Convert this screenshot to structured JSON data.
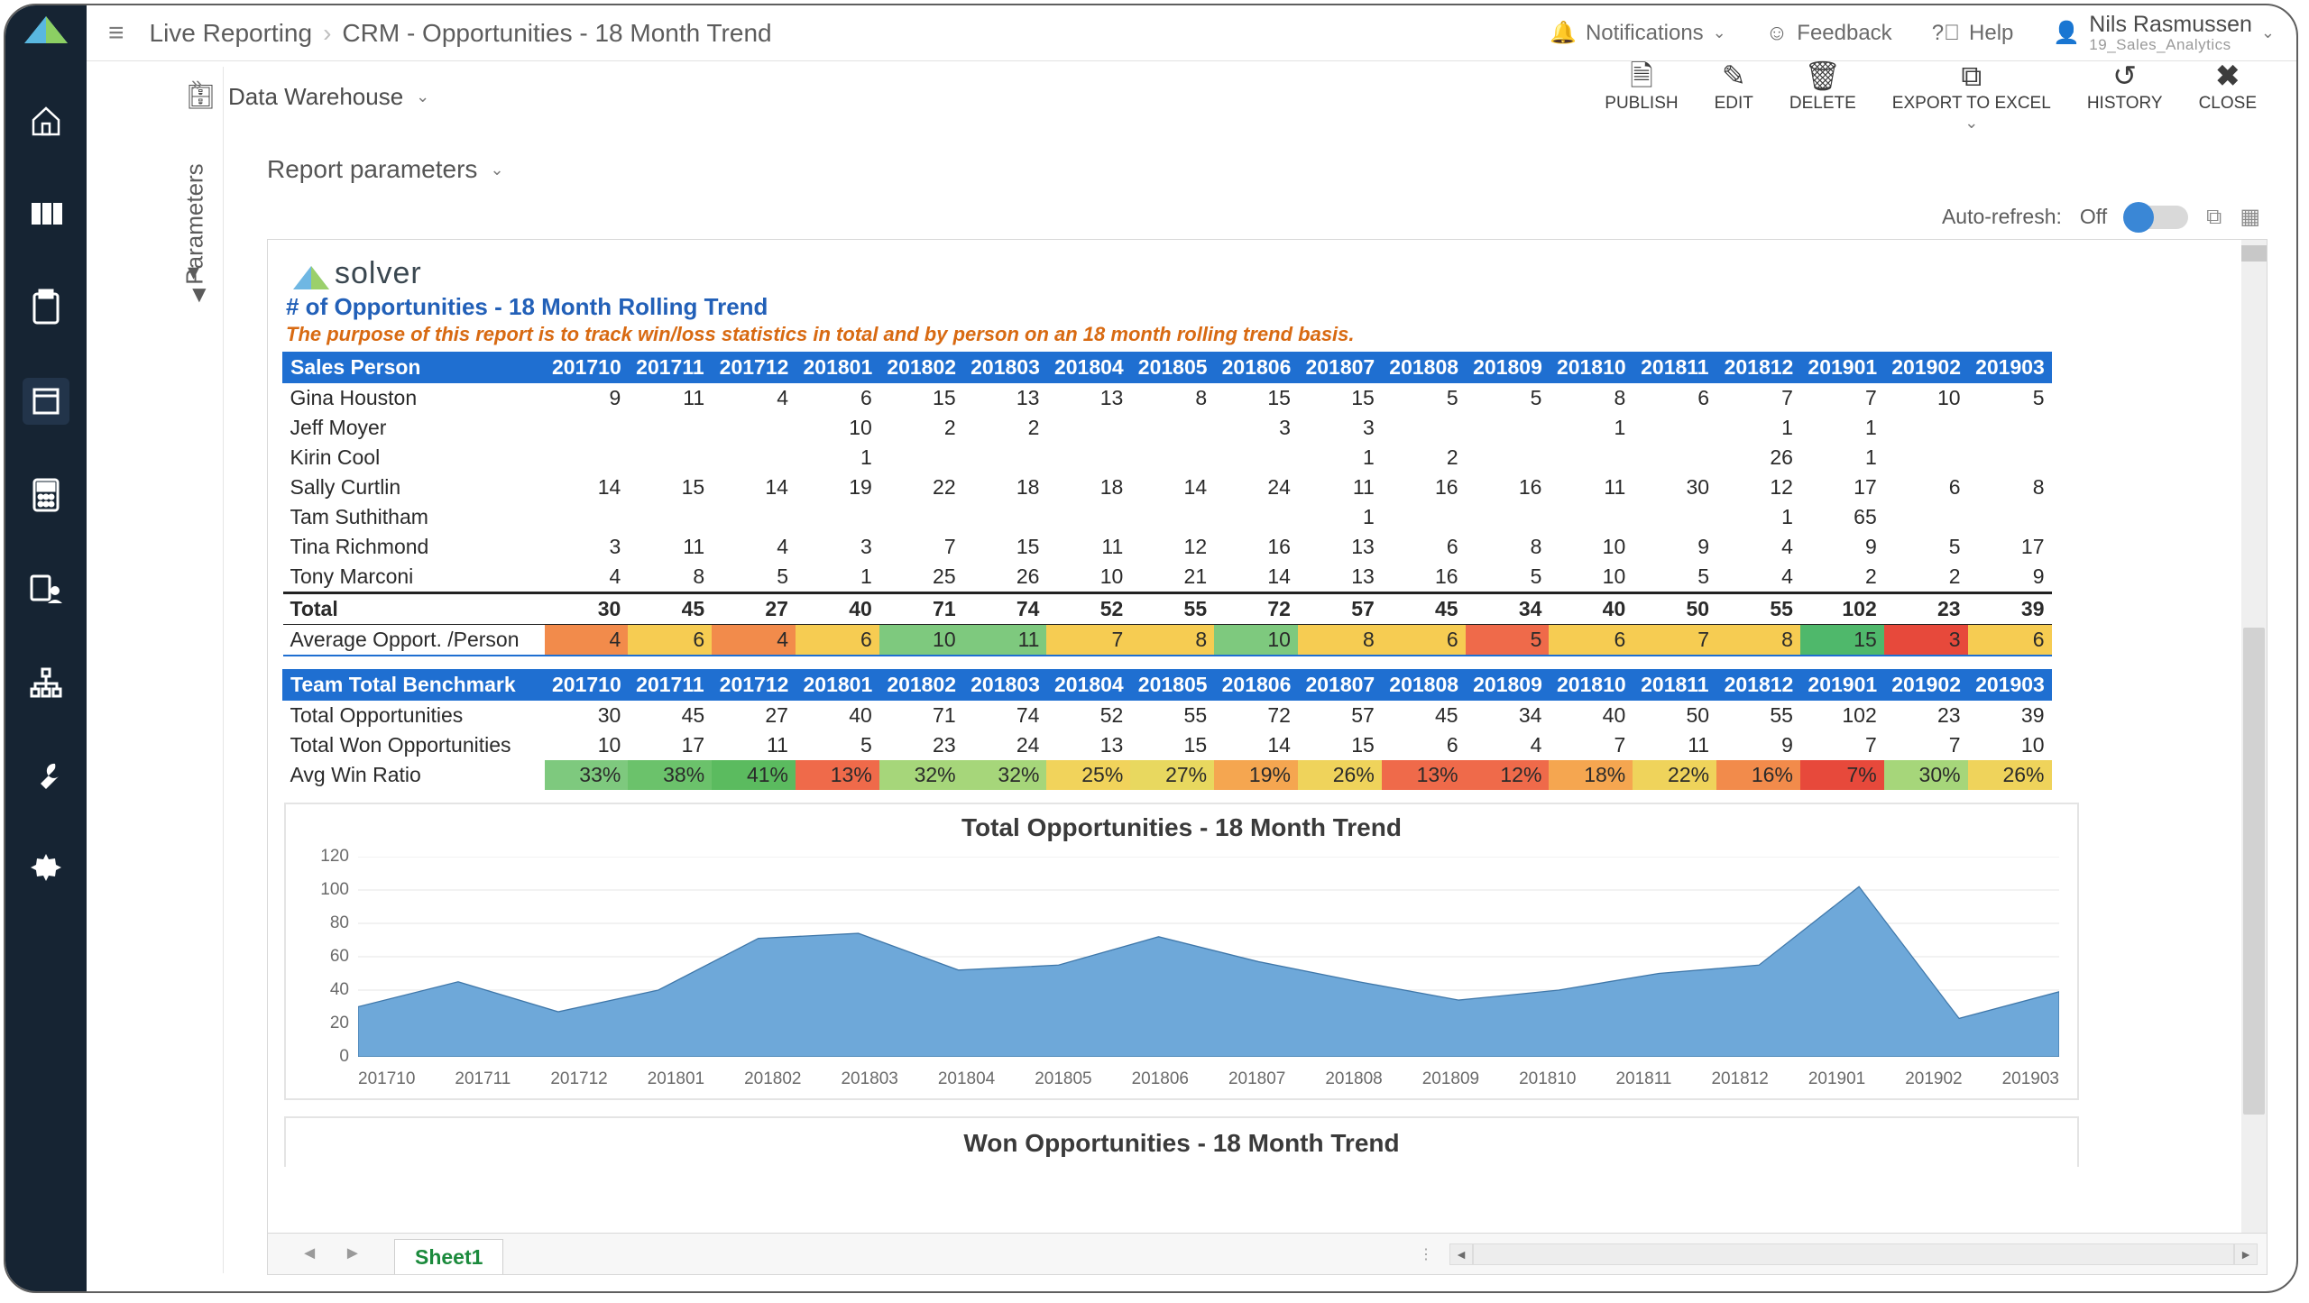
{
  "breadcrumb": {
    "root": "Live Reporting",
    "page": "CRM - Opportunities - 18 Month Trend"
  },
  "top": {
    "notifications": "Notifications",
    "feedback": "Feedback",
    "help": "Help",
    "user_name": "Nils Rasmussen",
    "user_org": "19_Sales_Analytics"
  },
  "secondbar": {
    "datasource": "Data Warehouse",
    "actions": {
      "publish": "PUBLISH",
      "edit": "EDIT",
      "delete": "DELETE",
      "export": "EXPORT TO EXCEL",
      "history": "HISTORY",
      "close": "CLOSE"
    }
  },
  "report_parameters_label": "Report parameters",
  "parameters_rail": "Parameters",
  "autorefresh": {
    "label": "Auto-refresh:",
    "state": "Off"
  },
  "brand": "solver",
  "report": {
    "title": "# of Opportunities - 18 Month Rolling Trend",
    "subtitle": "The purpose of this report is to track win/loss statistics in total and by person on an 18 month rolling trend basis."
  },
  "periods": [
    "201710",
    "201711",
    "201712",
    "201801",
    "201802",
    "201803",
    "201804",
    "201805",
    "201806",
    "201807",
    "201808",
    "201809",
    "201810",
    "201811",
    "201812",
    "201901",
    "201902",
    "201903"
  ],
  "sales_header": "Sales Person",
  "sales_rows": [
    {
      "name": "Gina Houston",
      "v": [
        9,
        11,
        4,
        6,
        15,
        13,
        13,
        8,
        15,
        15,
        5,
        5,
        8,
        6,
        7,
        7,
        10,
        5
      ]
    },
    {
      "name": "Jeff Moyer",
      "v": [
        null,
        null,
        null,
        10,
        2,
        2,
        null,
        null,
        3,
        3,
        null,
        null,
        1,
        null,
        1,
        1,
        null,
        null
      ]
    },
    {
      "name": "Kirin Cool",
      "v": [
        null,
        null,
        null,
        1,
        null,
        null,
        null,
        null,
        null,
        1,
        2,
        null,
        null,
        null,
        26,
        1,
        null,
        null
      ]
    },
    {
      "name": "Sally Curtlin",
      "v": [
        14,
        15,
        14,
        19,
        22,
        18,
        18,
        14,
        24,
        11,
        16,
        16,
        11,
        30,
        12,
        17,
        6,
        8
      ]
    },
    {
      "name": "Tam Suthitham",
      "v": [
        null,
        null,
        null,
        null,
        null,
        null,
        null,
        null,
        null,
        1,
        null,
        null,
        null,
        null,
        1,
        65,
        null,
        null
      ]
    },
    {
      "name": "Tina Richmond",
      "v": [
        3,
        11,
        4,
        3,
        7,
        15,
        11,
        12,
        16,
        13,
        6,
        8,
        10,
        9,
        4,
        9,
        5,
        17
      ]
    },
    {
      "name": "Tony Marconi",
      "v": [
        4,
        8,
        5,
        1,
        25,
        26,
        10,
        21,
        14,
        13,
        16,
        5,
        10,
        5,
        4,
        2,
        2,
        9
      ]
    }
  ],
  "total_label": "Total",
  "totals": [
    30,
    45,
    27,
    40,
    71,
    74,
    52,
    55,
    72,
    57,
    45,
    34,
    40,
    50,
    55,
    102,
    23,
    39
  ],
  "avg_label": "Average Opport. /Person",
  "avg_values": [
    4,
    6,
    4,
    6,
    10,
    11,
    7,
    8,
    10,
    8,
    6,
    5,
    6,
    7,
    8,
    15,
    3,
    6
  ],
  "avg_colors": [
    "#f28b4b",
    "#f6cc52",
    "#f28b4b",
    "#f6cc52",
    "#7ec97e",
    "#7ec97e",
    "#f6cc52",
    "#f6cc52",
    "#7ec97e",
    "#f6cc52",
    "#f6cc52",
    "#ef6a4a",
    "#f6cc52",
    "#f6cc52",
    "#f6cc52",
    "#4fb86b",
    "#e7493b",
    "#f6cc52"
  ],
  "bench_header": "Team Total Benchmark",
  "bench_rows": {
    "opp_label": "Total Opportunities",
    "opp": [
      30,
      45,
      27,
      40,
      71,
      74,
      52,
      55,
      72,
      57,
      45,
      34,
      40,
      50,
      55,
      102,
      23,
      39
    ],
    "won_label": "Total Won Opportunities",
    "won": [
      10,
      17,
      11,
      5,
      23,
      24,
      13,
      15,
      14,
      15,
      6,
      4,
      7,
      11,
      9,
      7,
      7,
      10
    ],
    "win_label": "Avg Win Ratio",
    "win": [
      "33%",
      "38%",
      "41%",
      "13%",
      "32%",
      "32%",
      "25%",
      "27%",
      "19%",
      "26%",
      "13%",
      "12%",
      "18%",
      "22%",
      "16%",
      "7%",
      "30%",
      "26%"
    ],
    "win_colors": [
      "#7ec97e",
      "#6bc26b",
      "#5bbb5f",
      "#ef6a4a",
      "#a6d67a",
      "#a6d67a",
      "#f1d35b",
      "#e8d85f",
      "#f5a650",
      "#efd35b",
      "#ef6a4a",
      "#ef6a4a",
      "#f5a650",
      "#efd35b",
      "#f28b4b",
      "#e7493b",
      "#a6d67a",
      "#efd35b"
    ]
  },
  "chart1": {
    "title": "Total Opportunities - 18 Month Trend",
    "type": "area",
    "x": [
      "201710",
      "201711",
      "201712",
      "201801",
      "201802",
      "201803",
      "201804",
      "201805",
      "201806",
      "201807",
      "201808",
      "201809",
      "201810",
      "201811",
      "201812",
      "201901",
      "201902",
      "201903"
    ],
    "y": [
      30,
      45,
      27,
      40,
      71,
      74,
      52,
      55,
      72,
      57,
      45,
      34,
      40,
      50,
      55,
      102,
      23,
      39
    ],
    "ylim": [
      0,
      120
    ],
    "ytick_step": 20,
    "fill": "#6ea8d9",
    "stroke": "#3f77a9",
    "grid_color": "#e6e6e6",
    "background": "#ffffff",
    "title_fontsize": 28,
    "label_fontsize": 19
  },
  "chart2": {
    "title": "Won Opportunities - 18 Month Trend"
  },
  "sheet_tab": "Sheet1"
}
